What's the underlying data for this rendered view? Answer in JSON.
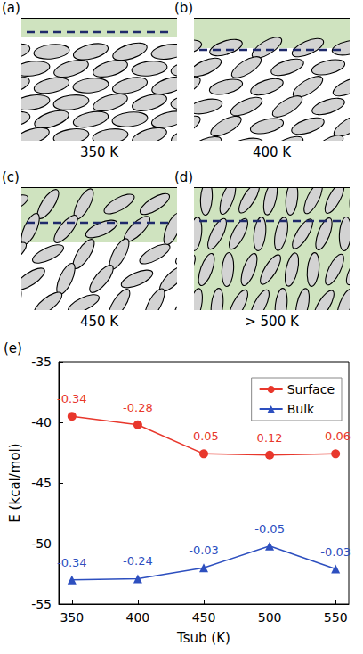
{
  "figure": {
    "panels": [
      {
        "label": "(a)",
        "caption": "350 K"
      },
      {
        "label": "(b)",
        "caption": "400 K"
      },
      {
        "label": "(c)",
        "caption": "450 K"
      },
      {
        "label": "(d)",
        "caption": "> 500 K"
      }
    ],
    "chart_label": "(e)"
  },
  "chart_data": {
    "type": "line",
    "xlabel": "Tsub (K)",
    "ylabel": "E (kcal/mol)",
    "x": [
      350,
      400,
      450,
      500,
      550
    ],
    "xlim": [
      340,
      560
    ],
    "xticks": [
      350,
      400,
      450,
      500,
      550
    ],
    "ylim": [
      -55,
      -35
    ],
    "yticks": [
      -55,
      -50,
      -45,
      -40,
      -35
    ],
    "grid": false,
    "legend": "upper right",
    "series": [
      {
        "name": "Surface",
        "color": "#e8372c",
        "marker": "circle",
        "values": [
          -39.5,
          -40.2,
          -42.6,
          -42.7,
          -42.6
        ],
        "annotations": [
          -0.34,
          -0.28,
          -0.05,
          0.12,
          -0.06
        ]
      },
      {
        "name": "Bulk",
        "color": "#2d4fbf",
        "marker": "triangle",
        "values": [
          -53.0,
          -52.9,
          -52.0,
          -50.2,
          -52.1
        ],
        "annotations": [
          -0.34,
          -0.24,
          -0.03,
          -0.05,
          -0.03
        ]
      }
    ]
  }
}
